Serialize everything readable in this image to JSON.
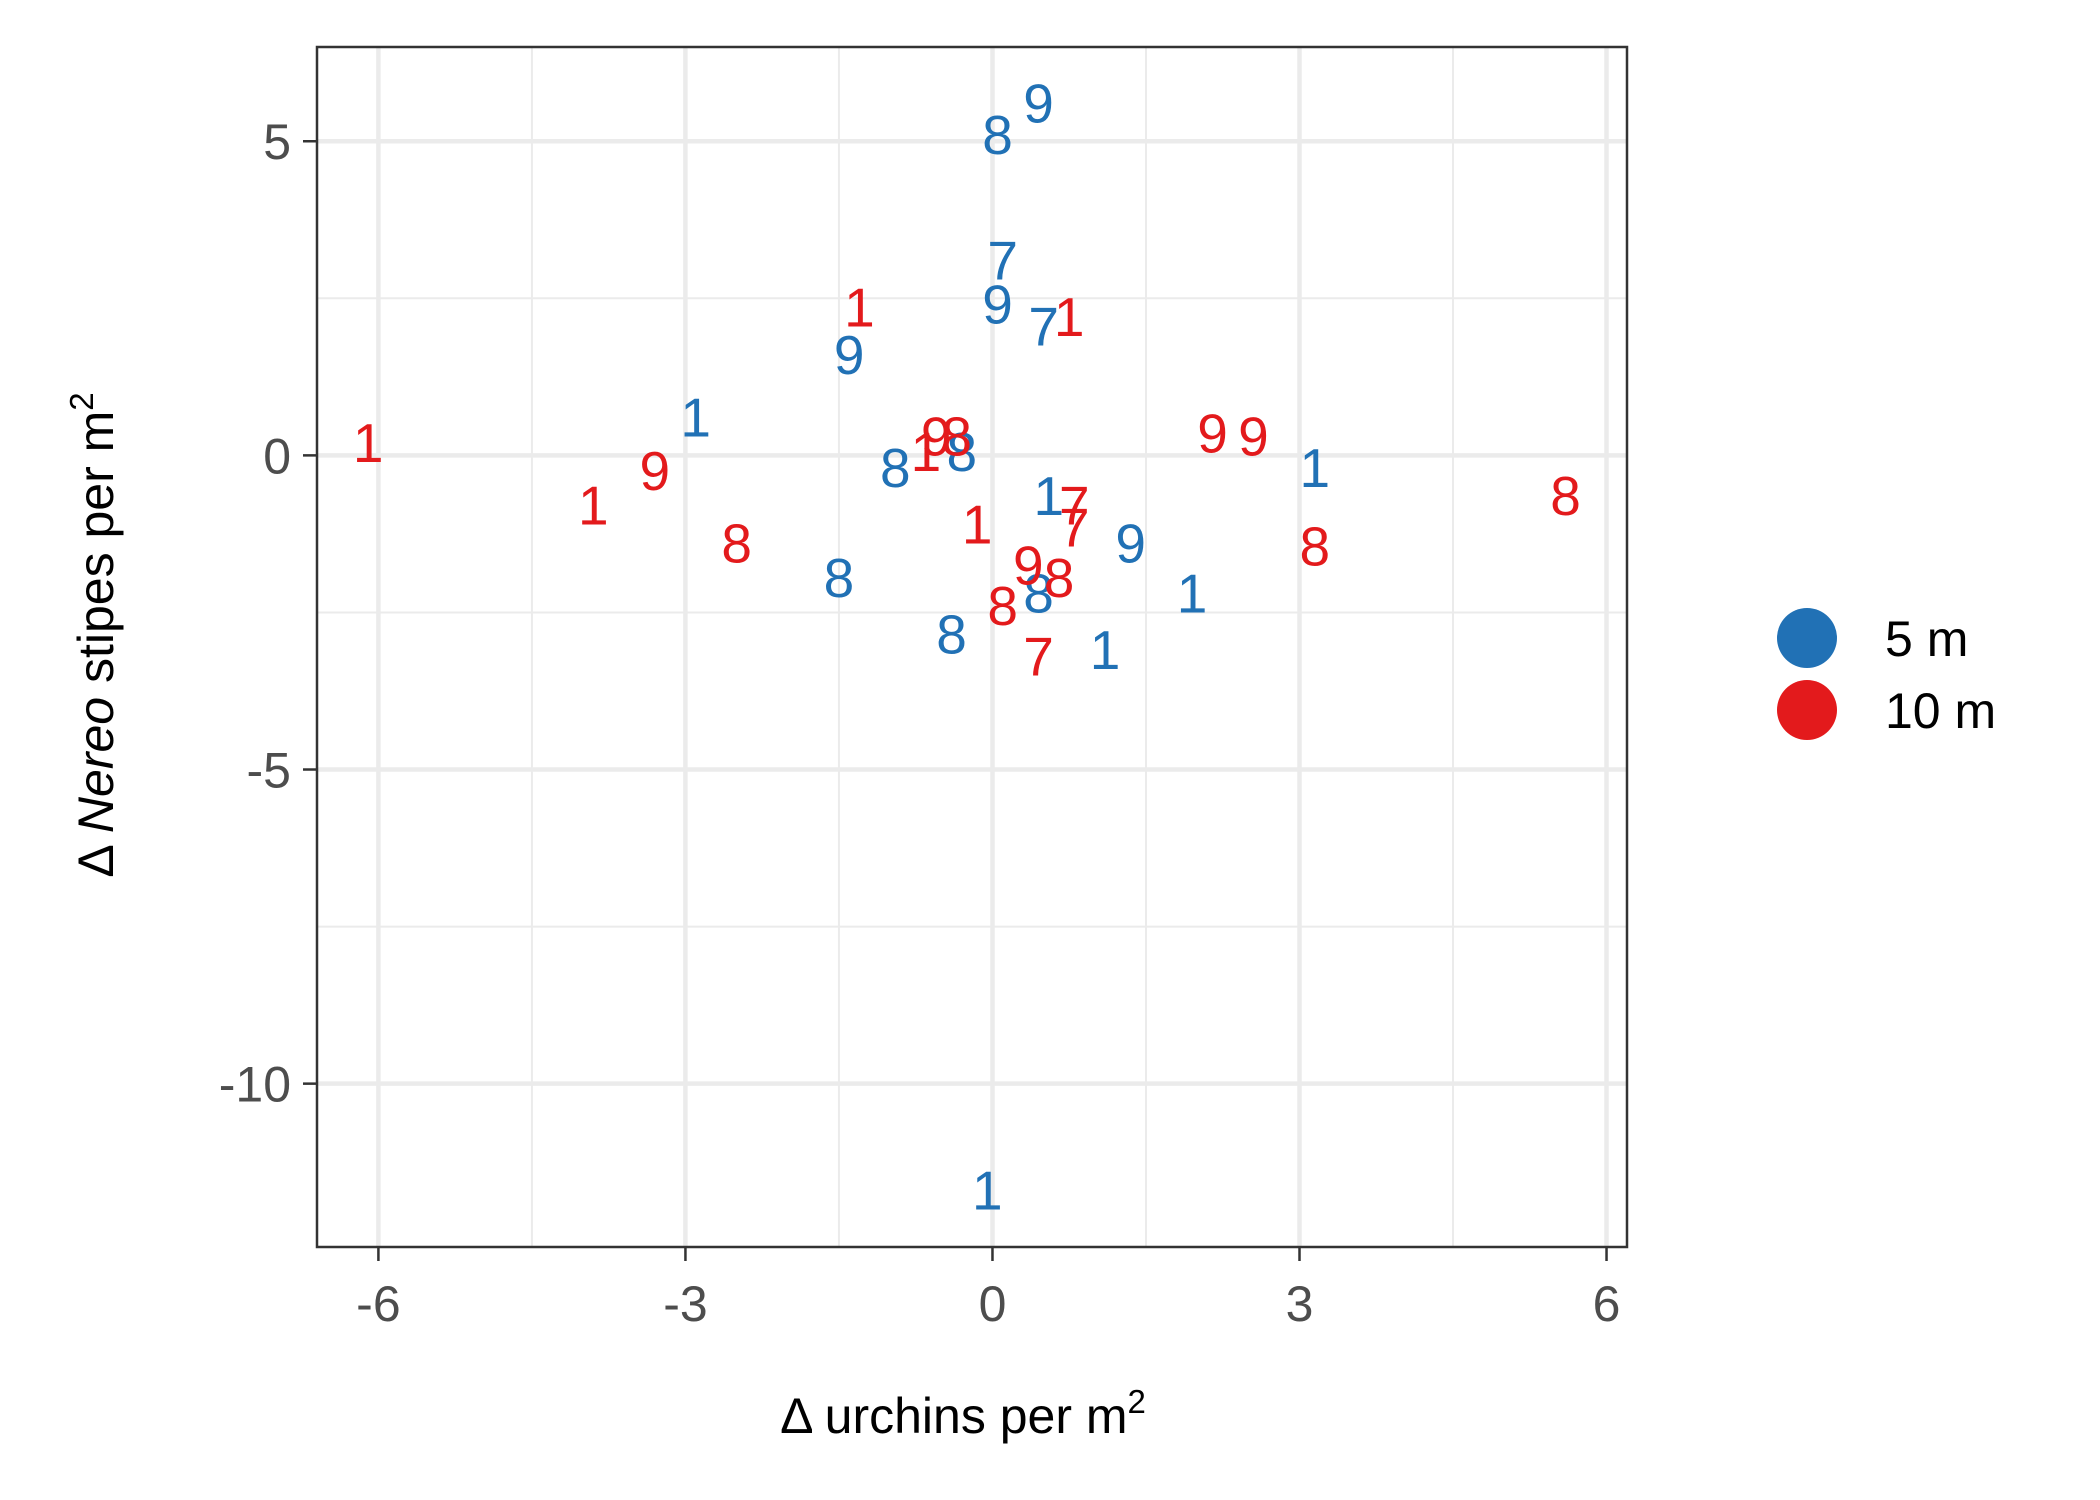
{
  "chart_data": {
    "type": "scatter",
    "marker": "text-label",
    "xlabel": {
      "prefix": "Δ",
      "main": " urchins per m",
      "sup": "2"
    },
    "ylabel": {
      "prefix": "Δ ",
      "italic": "Nereo",
      "main": " stipes per m",
      "sup": "2"
    },
    "xlim": [
      -6.6,
      6.2
    ],
    "ylim": [
      -12.6,
      6.5
    ],
    "xticks": [
      -6,
      -3,
      0,
      3,
      6
    ],
    "xtick_labels": [
      "-6",
      "-3",
      "0",
      "3",
      "6"
    ],
    "yticks": [
      5,
      0,
      -5,
      -10
    ],
    "ytick_labels": [
      "5",
      "0",
      "-5",
      "-10"
    ],
    "grid": true,
    "legend_position": "right",
    "series": [
      {
        "name": "5 m",
        "color": "#2171b5",
        "points": [
          {
            "x": 0.45,
            "y": 5.6,
            "label": "9"
          },
          {
            "x": 0.05,
            "y": 5.1,
            "label": "8"
          },
          {
            "x": 0.1,
            "y": 3.1,
            "label": "7"
          },
          {
            "x": 0.05,
            "y": 2.4,
            "label": "9"
          },
          {
            "x": 0.5,
            "y": 2.05,
            "label": "7"
          },
          {
            "x": -1.4,
            "y": 1.6,
            "label": "9"
          },
          {
            "x": -2.9,
            "y": 0.6,
            "label": "1"
          },
          {
            "x": -0.95,
            "y": -0.2,
            "label": "8"
          },
          {
            "x": -0.3,
            "y": 0.05,
            "label": "8"
          },
          {
            "x": 3.15,
            "y": -0.2,
            "label": "1"
          },
          {
            "x": 0.55,
            "y": -0.65,
            "label": "1"
          },
          {
            "x": 1.35,
            "y": -1.4,
            "label": "9"
          },
          {
            "x": -1.5,
            "y": -1.95,
            "label": "8"
          },
          {
            "x": 1.95,
            "y": -2.2,
            "label": "1"
          },
          {
            "x": 0.45,
            "y": -2.2,
            "label": "8"
          },
          {
            "x": -0.4,
            "y": -2.85,
            "label": "8"
          },
          {
            "x": 1.1,
            "y": -3.1,
            "label": "1"
          },
          {
            "x": -0.05,
            "y": -11.7,
            "label": "1"
          }
        ]
      },
      {
        "name": "10 m",
        "color": "#e31a1c",
        "points": [
          {
            "x": -1.3,
            "y": 2.35,
            "label": "1"
          },
          {
            "x": 0.75,
            "y": 2.2,
            "label": "1"
          },
          {
            "x": -6.1,
            "y": 0.2,
            "label": "1"
          },
          {
            "x": -3.3,
            "y": -0.25,
            "label": "9"
          },
          {
            "x": -0.55,
            "y": 0.3,
            "label": "9"
          },
          {
            "x": -0.35,
            "y": 0.3,
            "label": "8"
          },
          {
            "x": -0.65,
            "y": 0.05,
            "label": "1"
          },
          {
            "x": 2.15,
            "y": 0.35,
            "label": "9"
          },
          {
            "x": 2.55,
            "y": 0.3,
            "label": "9"
          },
          {
            "x": 5.6,
            "y": -0.65,
            "label": "8"
          },
          {
            "x": -3.9,
            "y": -0.8,
            "label": "1"
          },
          {
            "x": -0.15,
            "y": -1.1,
            "label": "1"
          },
          {
            "x": 0.8,
            "y": -0.8,
            "label": "7"
          },
          {
            "x": 0.8,
            "y": -1.15,
            "label": "7"
          },
          {
            "x": -2.5,
            "y": -1.4,
            "label": "8"
          },
          {
            "x": 3.15,
            "y": -1.45,
            "label": "8"
          },
          {
            "x": 0.35,
            "y": -1.75,
            "label": "9"
          },
          {
            "x": 0.65,
            "y": -1.95,
            "label": "8"
          },
          {
            "x": 0.1,
            "y": -2.4,
            "label": "8"
          },
          {
            "x": 0.45,
            "y": -3.2,
            "label": "7"
          }
        ]
      }
    ]
  }
}
